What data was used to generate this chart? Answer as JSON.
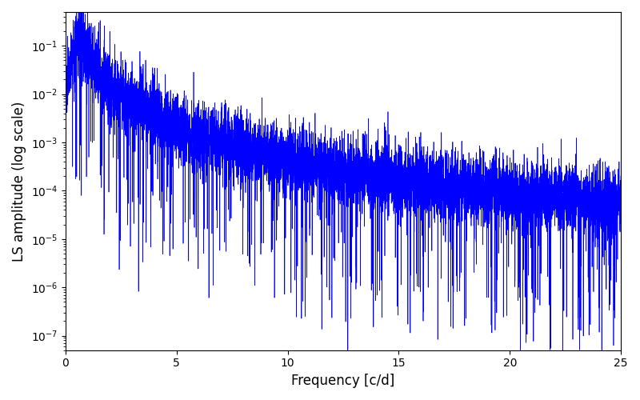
{
  "xlabel": "Frequency [c/d]",
  "ylabel": "LS amplitude (log scale)",
  "xlim": [
    0,
    25
  ],
  "ylim": [
    5e-08,
    0.5
  ],
  "line_color": "#0000ff",
  "line_width": 0.5,
  "background_color": "#ffffff",
  "figsize": [
    8.0,
    5.0
  ],
  "dpi": 100,
  "freq_max": 25.0,
  "num_points": 8000,
  "seed": 12345
}
